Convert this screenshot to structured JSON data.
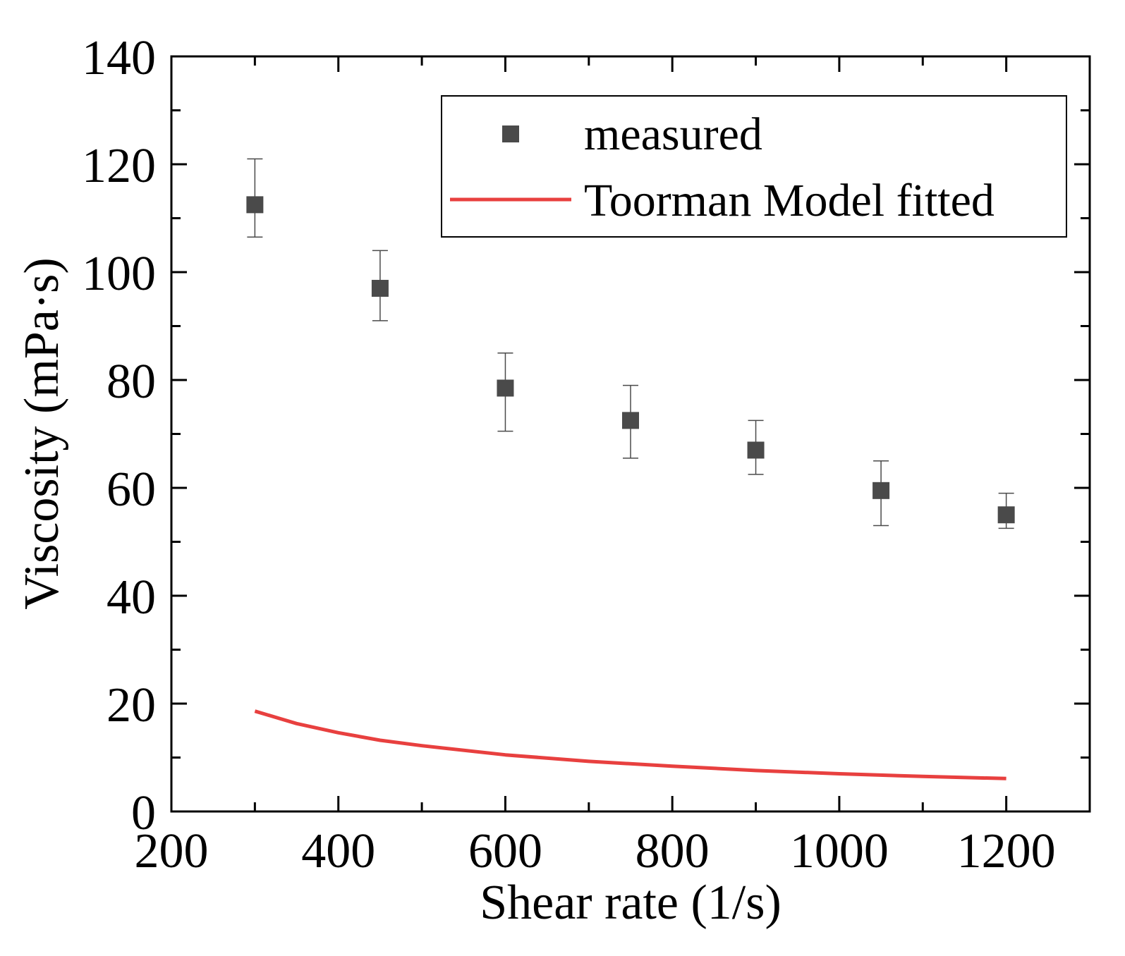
{
  "chart_data": {
    "type": "scatter",
    "xlabel": "Shear rate (1/s)",
    "ylabel": "Viscosity (mPa·s)",
    "xlim": [
      200,
      1300
    ],
    "ylim": [
      0,
      140
    ],
    "x_ticks": [
      200,
      400,
      600,
      800,
      1000,
      1200
    ],
    "y_ticks": [
      0,
      20,
      40,
      60,
      80,
      100,
      120,
      140
    ],
    "x_tick_labels": [
      "200",
      "400",
      "600",
      "800",
      "1000",
      "1200"
    ],
    "y_tick_labels": [
      "0",
      "20",
      "40",
      "60",
      "80",
      "100",
      "120",
      "140"
    ],
    "legend_position": "top-right",
    "series": [
      {
        "name": "measured",
        "kind": "scatter-errorbar",
        "color": "#4a4a4a",
        "x": [
          300,
          450,
          600,
          750,
          900,
          1050,
          1200
        ],
        "y": [
          112.5,
          97,
          78.5,
          72.5,
          67,
          59.5,
          55
        ],
        "y_err_low": [
          106.5,
          91,
          70.5,
          65.5,
          62.5,
          53,
          52.5
        ],
        "y_err_high": [
          121,
          104,
          85,
          79,
          72.5,
          65,
          59
        ]
      },
      {
        "name": "Toorman Model fitted",
        "kind": "line",
        "color": "#e8403f",
        "x": [
          300,
          350,
          400,
          450,
          500,
          600,
          700,
          800,
          900,
          1000,
          1100,
          1200
        ],
        "y": [
          18.6,
          16.3,
          14.6,
          13.2,
          12.2,
          10.5,
          9.3,
          8.4,
          7.6,
          7.0,
          6.5,
          6.1
        ]
      }
    ]
  }
}
